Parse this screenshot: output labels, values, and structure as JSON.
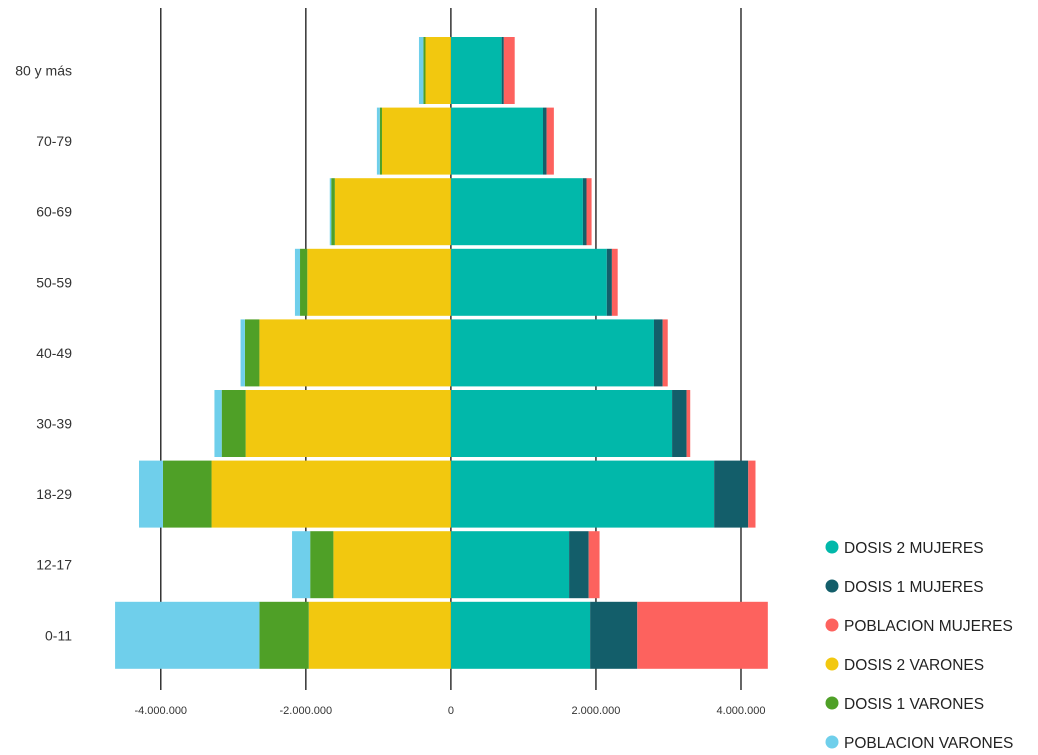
{
  "chart_data": {
    "type": "bar",
    "orientation": "horizontal-stacked-diverging",
    "categories": [
      "80 y más",
      "70-79",
      "60-69",
      "50-59",
      "40-49",
      "30-39",
      "18-29",
      "12-17",
      "0-11"
    ],
    "x_ticks": [
      {
        "value": -4000000,
        "label": "-4.000.000"
      },
      {
        "value": -2000000,
        "label": "-2.000.000"
      },
      {
        "value": 0,
        "label": "0"
      },
      {
        "value": 2000000,
        "label": "2.000.000"
      },
      {
        "value": 4000000,
        "label": "4.000.000"
      }
    ],
    "xlim": [
      -4700000,
      4400000
    ],
    "grid": true,
    "legend_position": "bottom-right",
    "series": [
      {
        "name": "DOSIS 2 MUJERES",
        "color": "#01B8AA",
        "values": [
          700000,
          1270000,
          1820000,
          2150000,
          2800000,
          3050000,
          3630000,
          1630000,
          1920000
        ]
      },
      {
        "name": "DOSIS 1 MUJERES",
        "color": "#135E6A",
        "values": [
          30000,
          50000,
          50000,
          70000,
          120000,
          200000,
          470000,
          270000,
          650000
        ]
      },
      {
        "name": "POBLACION MUJERES",
        "color": "#FD625E",
        "values": [
          150000,
          100000,
          70000,
          80000,
          70000,
          50000,
          100000,
          150000,
          1800000
        ]
      },
      {
        "name": "DOSIS 2 VARONES",
        "color": "#F2C80F",
        "values": [
          -350000,
          -950000,
          -1600000,
          -1980000,
          -2640000,
          -2830000,
          -3300000,
          -1620000,
          -1960000
        ]
      },
      {
        "name": "DOSIS 1 VARONES",
        "color": "#4FA027",
        "values": [
          -30000,
          -30000,
          -50000,
          -100000,
          -200000,
          -330000,
          -670000,
          -320000,
          -680000
        ]
      },
      {
        "name": "POBLACION VARONES",
        "color": "#6FCFEB",
        "values": [
          -60000,
          -40000,
          -20000,
          -70000,
          -60000,
          -100000,
          -330000,
          -250000,
          -1990000
        ]
      }
    ]
  }
}
